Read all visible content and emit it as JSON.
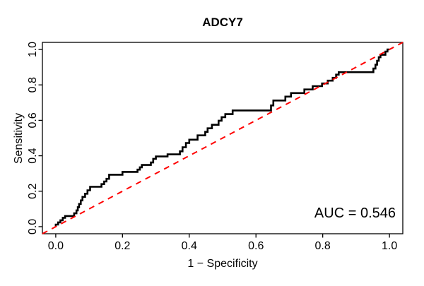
{
  "chart_data": {
    "type": "line",
    "subtype": "roc-step-curve",
    "title": "ADCY7",
    "xlabel": "1 − Specificity",
    "ylabel": "Sensitivity",
    "xlim": [
      -0.04,
      1.04
    ],
    "ylim": [
      -0.04,
      1.04
    ],
    "grid": false,
    "legend": "none",
    "x_tick_labels": [
      "0.0",
      "0.2",
      "0.4",
      "0.6",
      "0.8",
      "1.0"
    ],
    "x_tick_values": [
      0,
      0.2,
      0.4,
      0.6,
      0.8,
      1.0
    ],
    "y_tick_labels": [
      "0.0",
      "0.2",
      "0.4",
      "0.6",
      "0.8",
      "1.0"
    ],
    "y_tick_values": [
      0,
      0.2,
      0.4,
      0.6,
      0.8,
      1.0
    ],
    "auc": 0.546,
    "annotation": {
      "text": "AUC = 0.546",
      "position": "bottom-right"
    },
    "colors": {
      "curve": "#000000",
      "reference": "#ff0000",
      "box": "#000000",
      "background": "#ffffff"
    },
    "series": [
      {
        "id": "roc-curve",
        "name": "ROC curve",
        "style": "step",
        "color": "#000000",
        "linewidth": 2.6,
        "dash": "solid",
        "points": [
          [
            0,
            0
          ],
          [
            0,
            0.012
          ],
          [
            0.007,
            0.012
          ],
          [
            0.007,
            0.024
          ],
          [
            0.014,
            0.024
          ],
          [
            0.014,
            0.036
          ],
          [
            0.021,
            0.036
          ],
          [
            0.021,
            0.05
          ],
          [
            0.028,
            0.05
          ],
          [
            0.028,
            0.06
          ],
          [
            0.055,
            0.06
          ],
          [
            0.055,
            0.075
          ],
          [
            0.062,
            0.075
          ],
          [
            0.062,
            0.092
          ],
          [
            0.066,
            0.092
          ],
          [
            0.066,
            0.11
          ],
          [
            0.07,
            0.11
          ],
          [
            0.07,
            0.128
          ],
          [
            0.075,
            0.128
          ],
          [
            0.075,
            0.148
          ],
          [
            0.08,
            0.148
          ],
          [
            0.08,
            0.168
          ],
          [
            0.088,
            0.168
          ],
          [
            0.088,
            0.186
          ],
          [
            0.095,
            0.186
          ],
          [
            0.095,
            0.205
          ],
          [
            0.103,
            0.205
          ],
          [
            0.103,
            0.225
          ],
          [
            0.137,
            0.225
          ],
          [
            0.137,
            0.24
          ],
          [
            0.145,
            0.24
          ],
          [
            0.145,
            0.255
          ],
          [
            0.152,
            0.255
          ],
          [
            0.152,
            0.27
          ],
          [
            0.16,
            0.27
          ],
          [
            0.16,
            0.293
          ],
          [
            0.2,
            0.293
          ],
          [
            0.2,
            0.309
          ],
          [
            0.245,
            0.309
          ],
          [
            0.245,
            0.322
          ],
          [
            0.252,
            0.322
          ],
          [
            0.252,
            0.335
          ],
          [
            0.258,
            0.335
          ],
          [
            0.258,
            0.348
          ],
          [
            0.285,
            0.348
          ],
          [
            0.285,
            0.362
          ],
          [
            0.292,
            0.362
          ],
          [
            0.292,
            0.383
          ],
          [
            0.3,
            0.383
          ],
          [
            0.3,
            0.396
          ],
          [
            0.335,
            0.396
          ],
          [
            0.335,
            0.408
          ],
          [
            0.372,
            0.408
          ],
          [
            0.372,
            0.425
          ],
          [
            0.38,
            0.425
          ],
          [
            0.38,
            0.448
          ],
          [
            0.39,
            0.448
          ],
          [
            0.39,
            0.472
          ],
          [
            0.4,
            0.472
          ],
          [
            0.4,
            0.491
          ],
          [
            0.425,
            0.491
          ],
          [
            0.425,
            0.515
          ],
          [
            0.448,
            0.515
          ],
          [
            0.448,
            0.535
          ],
          [
            0.455,
            0.535
          ],
          [
            0.455,
            0.555
          ],
          [
            0.468,
            0.555
          ],
          [
            0.468,
            0.575
          ],
          [
            0.488,
            0.575
          ],
          [
            0.488,
            0.598
          ],
          [
            0.497,
            0.598
          ],
          [
            0.497,
            0.618
          ],
          [
            0.508,
            0.618
          ],
          [
            0.508,
            0.635
          ],
          [
            0.53,
            0.635
          ],
          [
            0.53,
            0.656
          ],
          [
            0.645,
            0.656
          ],
          [
            0.645,
            0.684
          ],
          [
            0.652,
            0.684
          ],
          [
            0.652,
            0.712
          ],
          [
            0.688,
            0.712
          ],
          [
            0.688,
            0.734
          ],
          [
            0.705,
            0.734
          ],
          [
            0.705,
            0.754
          ],
          [
            0.745,
            0.754
          ],
          [
            0.745,
            0.774
          ],
          [
            0.77,
            0.774
          ],
          [
            0.77,
            0.793
          ],
          [
            0.798,
            0.793
          ],
          [
            0.798,
            0.808
          ],
          [
            0.815,
            0.808
          ],
          [
            0.815,
            0.824
          ],
          [
            0.83,
            0.824
          ],
          [
            0.83,
            0.84
          ],
          [
            0.84,
            0.84
          ],
          [
            0.84,
            0.858
          ],
          [
            0.848,
            0.858
          ],
          [
            0.848,
            0.872
          ],
          [
            0.952,
            0.872
          ],
          [
            0.952,
            0.892
          ],
          [
            0.958,
            0.892
          ],
          [
            0.958,
            0.914
          ],
          [
            0.963,
            0.914
          ],
          [
            0.963,
            0.936
          ],
          [
            0.968,
            0.936
          ],
          [
            0.968,
            0.956
          ],
          [
            0.973,
            0.956
          ],
          [
            0.973,
            0.97
          ],
          [
            0.988,
            0.97
          ],
          [
            0.988,
            0.988
          ],
          [
            0.994,
            0.988
          ],
          [
            0.994,
            1
          ],
          [
            1,
            1
          ]
        ]
      },
      {
        "id": "reference-diagonal",
        "name": "Chance reference line",
        "style": "line",
        "color": "#ff0000",
        "linewidth": 2,
        "dash": "dashed",
        "points": [
          [
            -0.04,
            -0.04
          ],
          [
            1.04,
            1.04
          ]
        ]
      }
    ]
  }
}
